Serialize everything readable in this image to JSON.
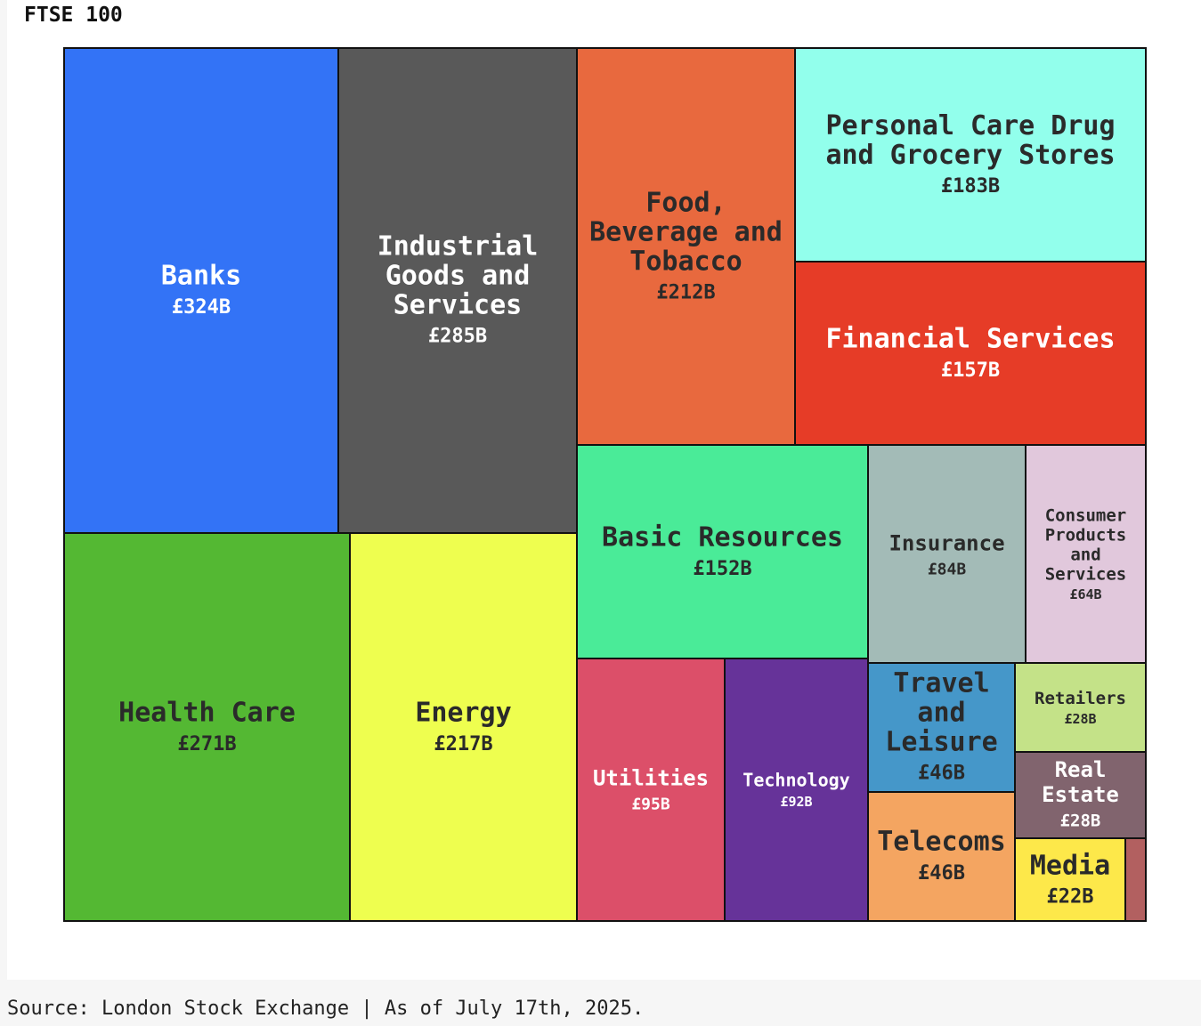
{
  "chart_data": {
    "type": "treemap",
    "title": "FTSE 100",
    "currency": "£",
    "unit": "B",
    "categories": [
      {
        "name": "Banks",
        "value": 324,
        "color": "#3373f6",
        "text_color": "#ffffff"
      },
      {
        "name": "Industrial Goods and Services",
        "value": 285,
        "color": "#595959",
        "text_color": "#ffffff"
      },
      {
        "name": "Health Care",
        "value": 271,
        "color": "#54b833",
        "text_color": "#2a2a2a"
      },
      {
        "name": "Energy",
        "value": 217,
        "color": "#eefe4f",
        "text_color": "#2a2a2a"
      },
      {
        "name": "Food, Beverage and Tobacco",
        "value": 212,
        "color": "#e8693e",
        "text_color": "#2a2a2a"
      },
      {
        "name": "Personal Care Drug and Grocery Stores",
        "value": 183,
        "color": "#92ffec",
        "text_color": "#2a2a2a"
      },
      {
        "name": "Financial Services",
        "value": 157,
        "color": "#e63c27",
        "text_color": "#ffffff"
      },
      {
        "name": "Basic Resources",
        "value": 152,
        "color": "#4aeb98",
        "text_color": "#2a2a2a"
      },
      {
        "name": "Utilities",
        "value": 95,
        "color": "#dc4f69",
        "text_color": "#ffffff"
      },
      {
        "name": "Technology",
        "value": 92,
        "color": "#663399",
        "text_color": "#ffffff"
      },
      {
        "name": "Insurance",
        "value": 84,
        "color": "#a3bbb7",
        "text_color": "#2a2a2a"
      },
      {
        "name": "Consumer Products and Services",
        "value": 64,
        "color": "#e1c8dc",
        "text_color": "#2a2a2a"
      },
      {
        "name": "Travel and Leisure",
        "value": 46,
        "color": "#4597c9",
        "text_color": "#2a2a2a"
      },
      {
        "name": "Telecoms",
        "value": 46,
        "color": "#f4a561",
        "text_color": "#2a2a2a"
      },
      {
        "name": "Retailers",
        "value": 28,
        "color": "#c4e288",
        "text_color": "#2a2a2a"
      },
      {
        "name": "Real Estate",
        "value": 28,
        "color": "#81646e",
        "text_color": "#ffffff"
      },
      {
        "name": "Media",
        "value": 22,
        "color": "#fde84a",
        "text_color": "#2a2a2a"
      },
      {
        "name": "",
        "value": null,
        "color": "#b26060",
        "text_color": "#ffffff"
      }
    ]
  },
  "footer": {
    "source": "Source: London Stock Exchange | As of July 17th, 2025."
  }
}
